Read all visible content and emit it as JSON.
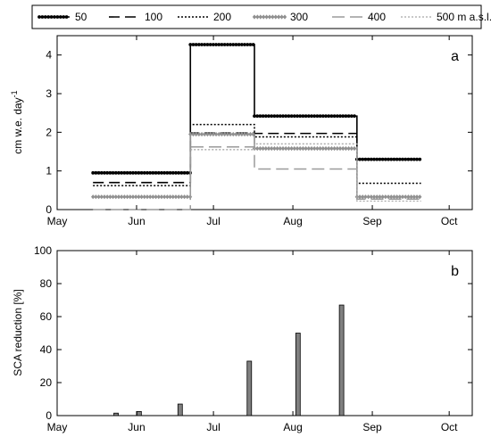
{
  "chart_data": [
    {
      "type": "line",
      "panel_label": "a",
      "xlabel": "",
      "ylabel": "cm w.e. day",
      "ylabel_sup": "-1",
      "xlim": [
        "2000-05-01",
        "2000-10-10"
      ],
      "ylim": [
        0,
        4.5
      ],
      "yticks": [
        0,
        1,
        2,
        3,
        4
      ],
      "xticks": [
        {
          "date": "2000-05-01",
          "label": "May"
        },
        {
          "date": "2000-06-01",
          "label": "Jun"
        },
        {
          "date": "2000-07-01",
          "label": "Jul"
        },
        {
          "date": "2000-08-01",
          "label": "Aug"
        },
        {
          "date": "2000-09-01",
          "label": "Sep"
        },
        {
          "date": "2000-10-01",
          "label": "Oct"
        }
      ],
      "grid": false,
      "legend_position": "top",
      "segment_edges": [
        "2000-05-15",
        "2000-06-22",
        "2000-07-17",
        "2000-08-26",
        "2000-09-20"
      ],
      "series": [
        {
          "name": "50",
          "style": "dot-marker",
          "color": "#000000",
          "values": [
            0.95,
            4.27,
            2.42,
            1.3
          ]
        },
        {
          "name": "100",
          "style": "long-dash",
          "color": "#000000",
          "values": [
            0.7,
            1.98,
            1.97,
            null
          ]
        },
        {
          "name": "200",
          "style": "dotted",
          "color": "#000000",
          "values": [
            0.62,
            2.2,
            1.88,
            0.68
          ]
        },
        {
          "name": "300",
          "style": "diamond-marker",
          "color": "#909090",
          "values": [
            0.33,
            1.95,
            1.58,
            0.33
          ]
        },
        {
          "name": "400",
          "style": "gray-dash",
          "color": "#9a9a9a",
          "values": [
            0.0,
            1.62,
            1.05,
            0.27
          ]
        },
        {
          "name": "500 m a.s.l.",
          "style": "gray-dotted",
          "color": "#a8a8a8",
          "values": [
            null,
            1.55,
            1.7,
            0.22
          ]
        }
      ]
    },
    {
      "type": "bar",
      "panel_label": "b",
      "xlabel": "",
      "ylabel": "SCA reduction [%]",
      "xlim": [
        "2000-05-01",
        "2000-10-10"
      ],
      "ylim": [
        0,
        100
      ],
      "yticks": [
        0,
        20,
        40,
        60,
        80,
        100
      ],
      "xticks": [
        {
          "date": "2000-05-01",
          "label": "May"
        },
        {
          "date": "2000-06-01",
          "label": "Jun"
        },
        {
          "date": "2000-07-01",
          "label": "Jul"
        },
        {
          "date": "2000-08-01",
          "label": "Aug"
        },
        {
          "date": "2000-09-01",
          "label": "Sep"
        },
        {
          "date": "2000-10-01",
          "label": "Oct"
        }
      ],
      "grid": false,
      "bar_color": "#808080",
      "x": [
        "2000-05-24",
        "2000-06-02",
        "2000-06-18",
        "2000-07-15",
        "2000-08-03",
        "2000-08-20"
      ],
      "values": [
        1.5,
        2.5,
        7,
        33,
        50,
        67
      ]
    }
  ]
}
